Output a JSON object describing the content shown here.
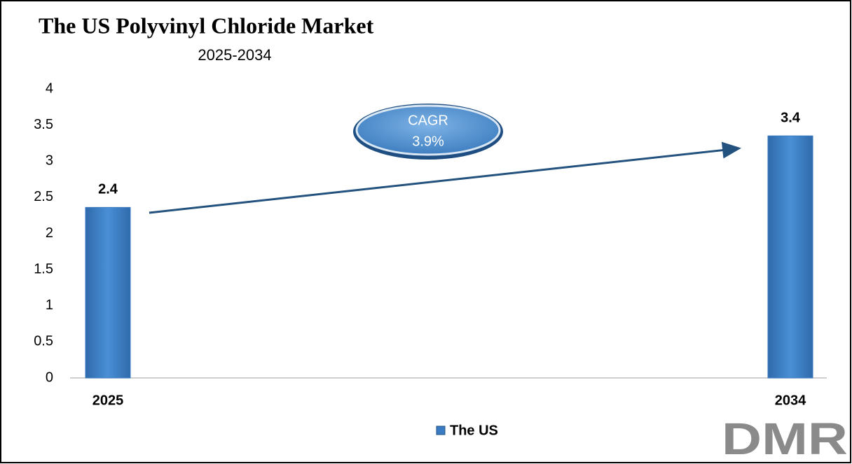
{
  "chart_data": {
    "type": "bar",
    "title": "The US Polyvinyl Chloride Market",
    "subtitle": "2025-2034",
    "categories": [
      "2025",
      "2034"
    ],
    "series": [
      {
        "name": "The US",
        "color": "#3a7cc4",
        "values": [
          2.36,
          3.35
        ],
        "value_labels": [
          "2.4",
          "3.4"
        ]
      }
    ],
    "ylim": [
      0,
      4
    ],
    "yticks": [
      0,
      0.5,
      1,
      1.5,
      2,
      2.5,
      3,
      3.5,
      4
    ],
    "annotation": {
      "label": "CAGR",
      "value": "3.9%"
    },
    "logo": "DMR"
  }
}
